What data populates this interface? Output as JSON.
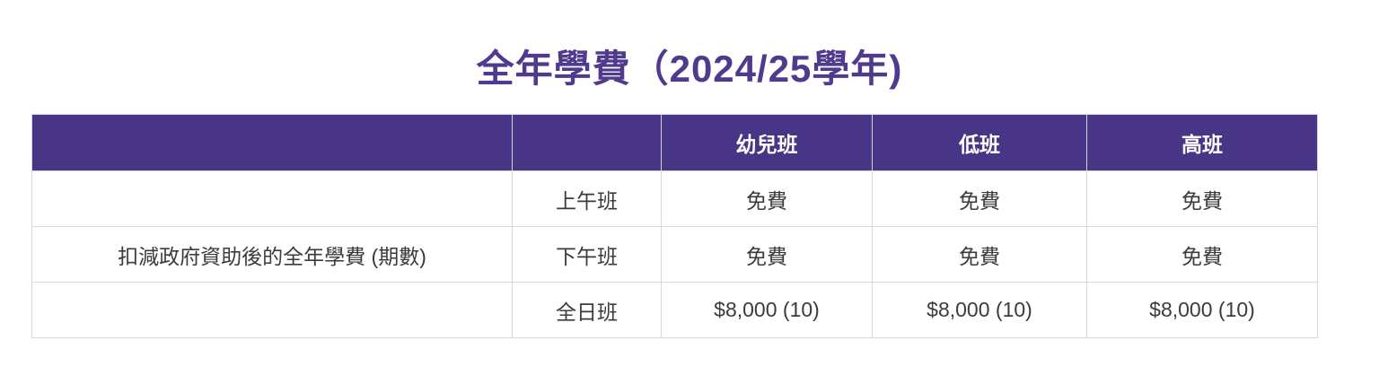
{
  "page": {
    "title": "全年學費（2024/25學年)"
  },
  "colors": {
    "title_text": "#4f3a8e",
    "header_bg": "#483586",
    "header_text": "#ffffff",
    "body_text": "#3b3b3b",
    "grid_line": "#d9d9d9",
    "background": "#ffffff"
  },
  "table": {
    "columns": [
      "",
      "",
      "幼兒班",
      "低班",
      "高班"
    ],
    "rows": [
      {
        "category": "",
        "session": "上午班",
        "values": [
          "免費",
          "免費",
          "免費"
        ]
      },
      {
        "category": "扣減政府資助後的全年學費 (期數)",
        "session": "下午班",
        "values": [
          "免費",
          "免費",
          "免費"
        ]
      },
      {
        "category": "",
        "session": "全日班",
        "values": [
          "$8,000 (10)",
          "$8,000 (10)",
          "$8,000 (10)"
        ]
      }
    ]
  }
}
